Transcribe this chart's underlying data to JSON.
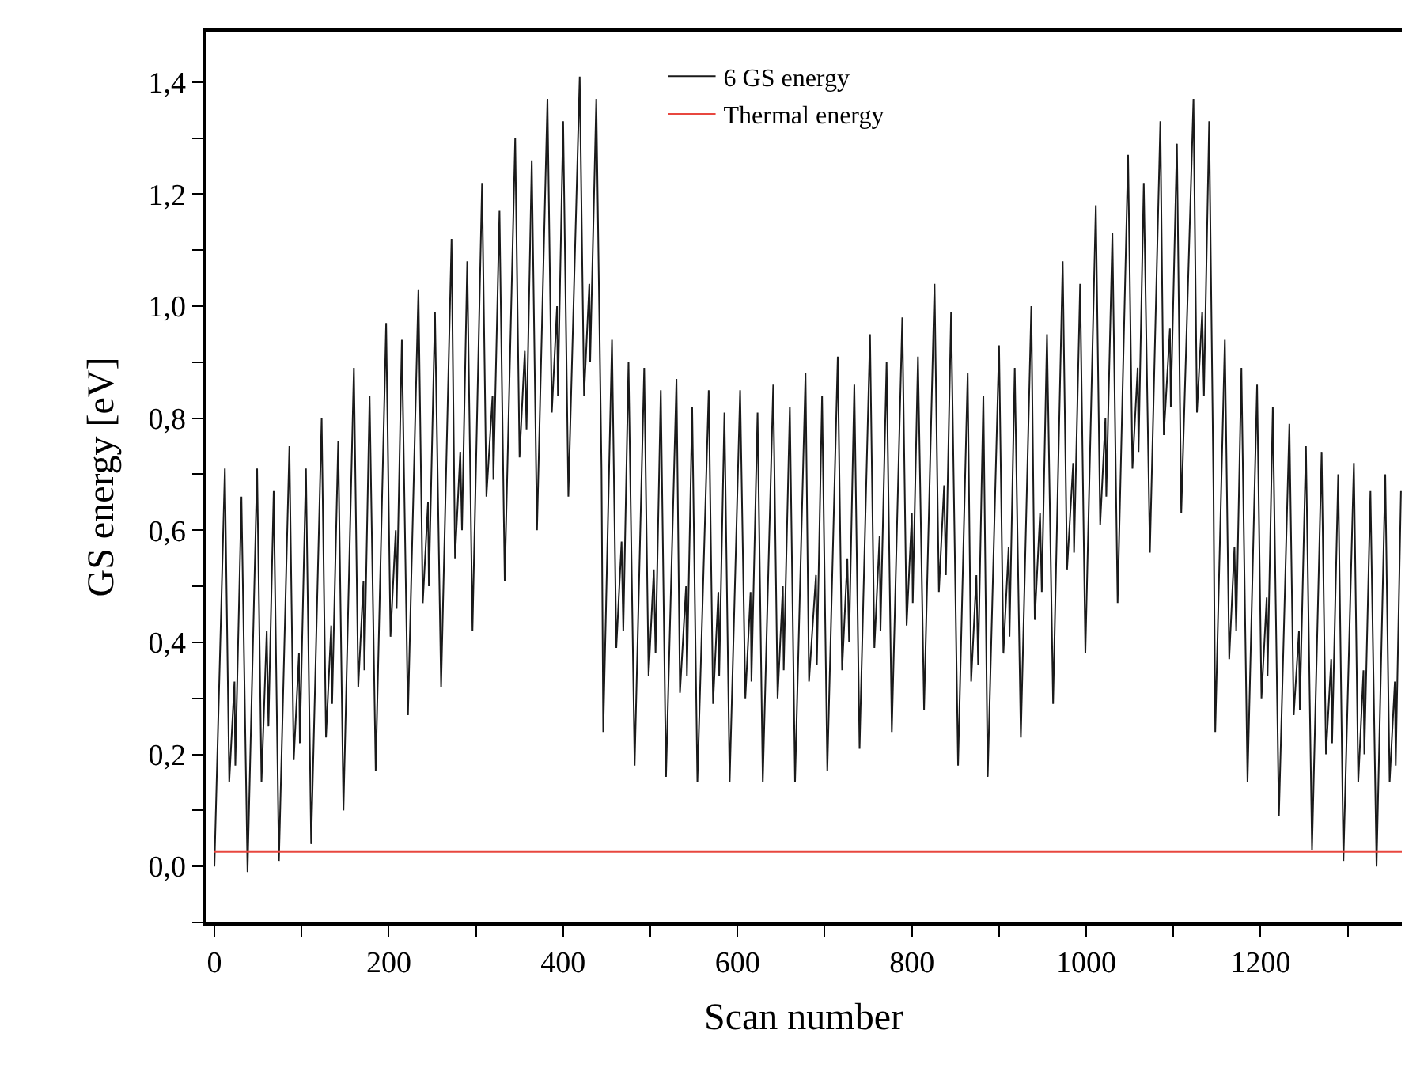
{
  "chart_data": {
    "type": "line",
    "xlabel": "Scan number",
    "ylabel": "GS energy [eV]",
    "xlim": [
      -10,
      1362
    ],
    "ylim": [
      -0.1,
      1.49
    ],
    "xticks": [
      0,
      {
        "value": 100,
        "label": null
      },
      200,
      {
        "value": 300,
        "label": null
      },
      400,
      {
        "value": 500,
        "label": null
      },
      600,
      {
        "value": 700,
        "label": null
      },
      800,
      {
        "value": 900,
        "label": null
      },
      1000,
      {
        "value": 1100,
        "label": null
      },
      1200,
      {
        "value": 1300,
        "label": null
      }
    ],
    "yticks": [
      {
        "value": -0.1,
        "label": null
      },
      {
        "value": 0,
        "label": "0,0"
      },
      {
        "value": 0.1,
        "label": null
      },
      {
        "value": 0.2,
        "label": "0,2"
      },
      {
        "value": 0.3,
        "label": null
      },
      {
        "value": 0.4,
        "label": "0,4"
      },
      {
        "value": 0.5,
        "label": null
      },
      {
        "value": 0.6,
        "label": "0,6"
      },
      {
        "value": 0.7,
        "label": null
      },
      {
        "value": 0.8,
        "label": "0,8"
      },
      {
        "value": 0.9,
        "label": null
      },
      {
        "value": 1.0,
        "label": "1,0"
      },
      {
        "value": 1.1,
        "label": null
      },
      {
        "value": 1.2,
        "label": "1,2"
      },
      {
        "value": 1.3,
        "label": null
      },
      {
        "value": 1.4,
        "label": "1,4"
      }
    ],
    "legend": "top",
    "marker": "none",
    "line_style": "solid",
    "series": [
      {
        "name": "6 GS energy",
        "color": "#1a1a1a",
        "x": [
          0,
          12,
          17,
          23,
          24,
          31,
          38,
          49,
          54,
          60,
          62,
          68,
          74,
          86,
          91,
          97,
          98,
          105,
          111,
          123,
          128,
          134,
          135,
          142,
          148,
          160,
          165,
          171,
          172,
          178,
          185,
          197,
          202,
          208,
          209,
          215,
          222,
          234,
          239,
          245,
          246,
          253,
          260,
          272,
          276,
          282,
          284,
          290,
          296,
          307,
          312,
          319,
          320,
          327,
          333,
          345,
          350,
          356,
          358,
          364,
          370,
          382,
          387,
          393,
          394,
          400,
          406,
          419,
          424,
          430,
          431,
          438,
          444,
          446,
          456,
          461,
          467,
          469,
          475,
          482,
          493,
          498,
          504,
          506,
          512,
          518,
          530,
          534,
          541,
          542,
          548,
          554,
          567,
          572,
          578,
          579,
          585,
          591,
          603,
          609,
          615,
          616,
          623,
          629,
          641,
          646,
          652,
          653,
          660,
          666,
          678,
          682,
          690,
          691,
          697,
          703,
          715,
          720,
          726,
          728,
          734,
          740,
          752,
          757,
          763,
          764,
          771,
          777,
          789,
          794,
          800,
          801,
          807,
          814,
          826,
          831,
          837,
          839,
          845,
          853,
          864,
          868,
          874,
          876,
          882,
          887,
          900,
          905,
          911,
          912,
          918,
          925,
          937,
          941,
          947,
          949,
          955,
          962,
          973,
          978,
          985,
          986,
          993,
          999,
          1011,
          1016,
          1022,
          1023,
          1030,
          1036,
          1048,
          1053,
          1059,
          1060,
          1066,
          1073,
          1085,
          1089,
          1096,
          1097,
          1104,
          1109,
          1123,
          1127,
          1133,
          1135,
          1141,
          1146,
          1148,
          1159,
          1164,
          1170,
          1172,
          1178,
          1185,
          1196,
          1201,
          1207,
          1208,
          1214,
          1221,
          1233,
          1238,
          1244,
          1245,
          1252,
          1259,
          1270,
          1275,
          1281,
          1282,
          1289,
          1295,
          1307,
          1312,
          1318,
          1319,
          1326,
          1333,
          1343,
          1348,
          1354,
          1355,
          1361
        ],
        "values": [
          0.0,
          0.71,
          0.15,
          0.33,
          0.18,
          0.66,
          -0.01,
          0.71,
          0.15,
          0.42,
          0.25,
          0.67,
          0.01,
          0.75,
          0.19,
          0.38,
          0.22,
          0.71,
          0.04,
          0.8,
          0.23,
          0.43,
          0.29,
          0.76,
          0.1,
          0.89,
          0.32,
          0.51,
          0.35,
          0.84,
          0.17,
          0.97,
          0.41,
          0.6,
          0.46,
          0.94,
          0.27,
          1.03,
          0.47,
          0.65,
          0.5,
          0.99,
          0.32,
          1.12,
          0.55,
          0.74,
          0.6,
          1.08,
          0.42,
          1.22,
          0.66,
          0.84,
          0.69,
          1.17,
          0.51,
          1.3,
          0.73,
          0.92,
          0.78,
          1.26,
          0.6,
          1.37,
          0.81,
          1.0,
          0.84,
          1.33,
          0.66,
          1.41,
          0.84,
          1.04,
          0.9,
          1.37,
          0.71,
          0.24,
          0.94,
          0.39,
          0.58,
          0.42,
          0.9,
          0.18,
          0.89,
          0.34,
          0.53,
          0.38,
          0.85,
          0.16,
          0.87,
          0.31,
          0.5,
          0.34,
          0.82,
          0.15,
          0.85,
          0.29,
          0.49,
          0.34,
          0.81,
          0.15,
          0.85,
          0.3,
          0.49,
          0.33,
          0.81,
          0.15,
          0.86,
          0.3,
          0.5,
          0.35,
          0.82,
          0.15,
          0.88,
          0.33,
          0.52,
          0.36,
          0.84,
          0.17,
          0.91,
          0.35,
          0.55,
          0.4,
          0.86,
          0.21,
          0.95,
          0.39,
          0.59,
          0.42,
          0.9,
          0.24,
          0.98,
          0.43,
          0.63,
          0.47,
          0.91,
          0.28,
          1.04,
          0.49,
          0.68,
          0.52,
          0.99,
          0.18,
          0.88,
          0.33,
          0.52,
          0.36,
          0.84,
          0.16,
          0.93,
          0.38,
          0.57,
          0.41,
          0.89,
          0.23,
          1.0,
          0.44,
          0.63,
          0.49,
          0.95,
          0.29,
          1.08,
          0.53,
          0.72,
          0.56,
          1.04,
          0.38,
          1.18,
          0.61,
          0.8,
          0.66,
          1.13,
          0.47,
          1.27,
          0.71,
          0.89,
          0.74,
          1.22,
          0.56,
          1.33,
          0.77,
          0.96,
          0.82,
          1.29,
          0.63,
          1.37,
          0.81,
          0.99,
          0.84,
          1.33,
          0.67,
          0.24,
          0.94,
          0.37,
          0.57,
          0.42,
          0.89,
          0.15,
          0.86,
          0.3,
          0.48,
          0.34,
          0.82,
          0.09,
          0.79,
          0.27,
          0.42,
          0.28,
          0.75,
          0.03,
          0.74,
          0.2,
          0.37,
          0.22,
          0.7,
          0.01,
          0.72,
          0.15,
          0.35,
          0.2,
          0.67,
          0.0,
          0.7,
          0.15,
          0.33,
          0.18,
          0.67
        ]
      },
      {
        "name": "Thermal energy",
        "color": "#e8473f",
        "x": [
          0,
          1362
        ],
        "values": [
          0.026,
          0.026
        ]
      }
    ]
  }
}
